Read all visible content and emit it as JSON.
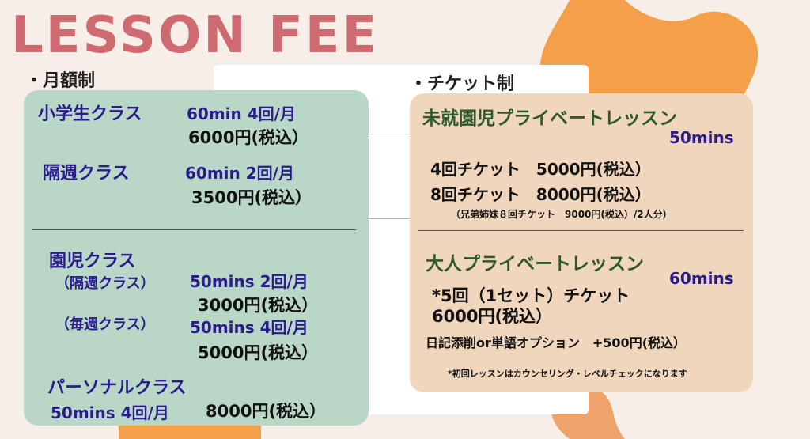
{
  "title": "LESSON FEE",
  "monthly": {
    "heading": "・月額制",
    "elementary": {
      "name": "小学生クラス",
      "detail": "60min 4回/月",
      "price": "6000円(税込）"
    },
    "biweekly": {
      "name": "隔週クラス",
      "detail": "60min 2回/月",
      "price": "3500円(税込）"
    },
    "kinder": {
      "name": "園児クラス",
      "biweekly": {
        "name": "（隔週クラス）",
        "detail": "50mins 2回/月",
        "price": "3000円(税込）"
      },
      "weekly": {
        "name": "（毎週クラス）",
        "detail": "50mins 4回/月",
        "price": "5000円(税込）"
      }
    },
    "personal": {
      "name": "パーソナルクラス",
      "detail": "50mins 4回/月",
      "price": "8000円(税込）"
    }
  },
  "ticket": {
    "heading": "・チケット制",
    "preschool": {
      "name": "未就園児プライベートレッスン",
      "duration": "50mins",
      "t4": "4回チケット　5000円(税込）",
      "t8": "8回チケット　8000円(税込）",
      "sibling": "（兄弟姉妹８回チケット　9000円(税込）/2人分）"
    },
    "adult": {
      "name": "大人プライベートレッスン",
      "duration": "60mins",
      "set": "*5回（1セット）チケット",
      "price": "6000円(税込）",
      "option": "日記添削or単語オプション　+500円(税込）",
      "note": "*初回レッスンはカウンセリング・レベルチェックになります"
    }
  },
  "colors": {
    "title": "#cf6b70",
    "monthly_panel": "#b9d7c6",
    "ticket_panel": "#f0d6bd",
    "accent_blob": "#f4a04a"
  }
}
